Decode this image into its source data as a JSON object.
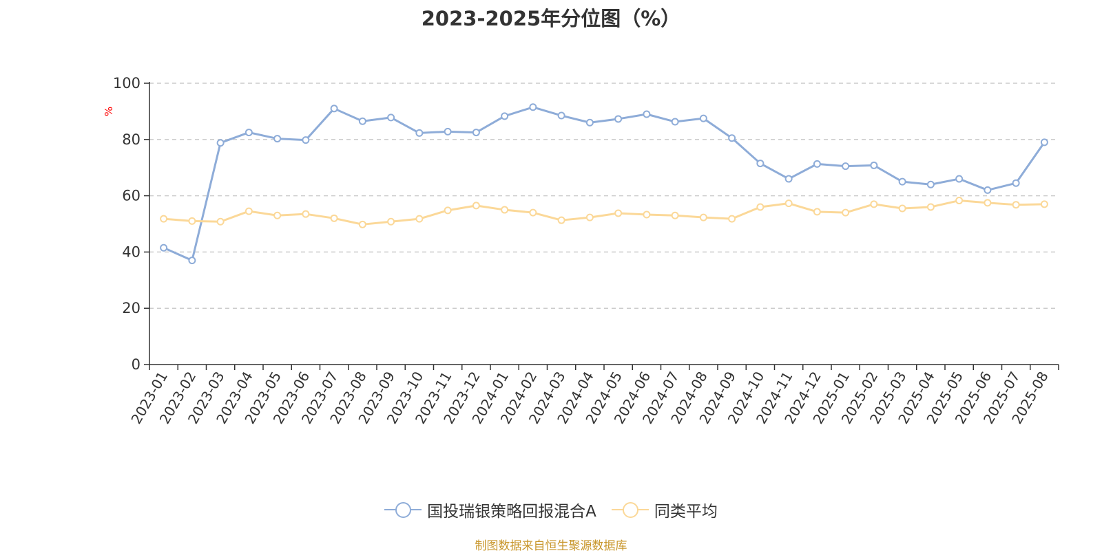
{
  "chart_data": {
    "type": "line",
    "title": "2023-2025年分位图（%）",
    "ylabel": "%",
    "ylim": [
      0,
      100
    ],
    "yticks": [
      0,
      20,
      40,
      60,
      80,
      100
    ],
    "grid": true,
    "legend_position": "bottom",
    "categories": [
      "2023-01",
      "2023-02",
      "2023-03",
      "2023-04",
      "2023-05",
      "2023-06",
      "2023-07",
      "2023-08",
      "2023-09",
      "2023-10",
      "2023-11",
      "2023-12",
      "2024-01",
      "2024-02",
      "2024-03",
      "2024-04",
      "2024-05",
      "2024-06",
      "2024-07",
      "2024-08",
      "2024-09",
      "2024-10",
      "2024-11",
      "2024-12",
      "2025-01",
      "2025-02",
      "2025-03",
      "2025-04",
      "2025-05",
      "2025-06",
      "2025-07",
      "2025-08"
    ],
    "series": [
      {
        "name": "国投瑞银策略回报混合A",
        "color": "#8eacd8",
        "values": [
          41.5,
          37.0,
          78.8,
          82.5,
          80.3,
          79.8,
          91.0,
          86.5,
          87.8,
          82.3,
          82.8,
          82.5,
          88.3,
          91.5,
          88.5,
          86.0,
          87.3,
          89.0,
          86.3,
          87.5,
          80.5,
          71.5,
          66.0,
          71.3,
          70.5,
          70.8,
          65.0,
          64.0,
          66.0,
          62.0,
          64.5,
          79.0
        ]
      },
      {
        "name": "同类平均",
        "color": "#fbd898",
        "values": [
          51.8,
          51.0,
          50.8,
          54.5,
          53.0,
          53.5,
          52.0,
          49.8,
          50.8,
          51.8,
          54.8,
          56.5,
          55.0,
          54.0,
          51.3,
          52.3,
          53.8,
          53.3,
          53.0,
          52.3,
          51.8,
          56.0,
          57.3,
          54.3,
          54.0,
          57.0,
          55.5,
          56.0,
          58.3,
          57.5,
          56.8,
          57.0
        ]
      }
    ],
    "source": "制图数据来自恒生聚源数据库"
  }
}
